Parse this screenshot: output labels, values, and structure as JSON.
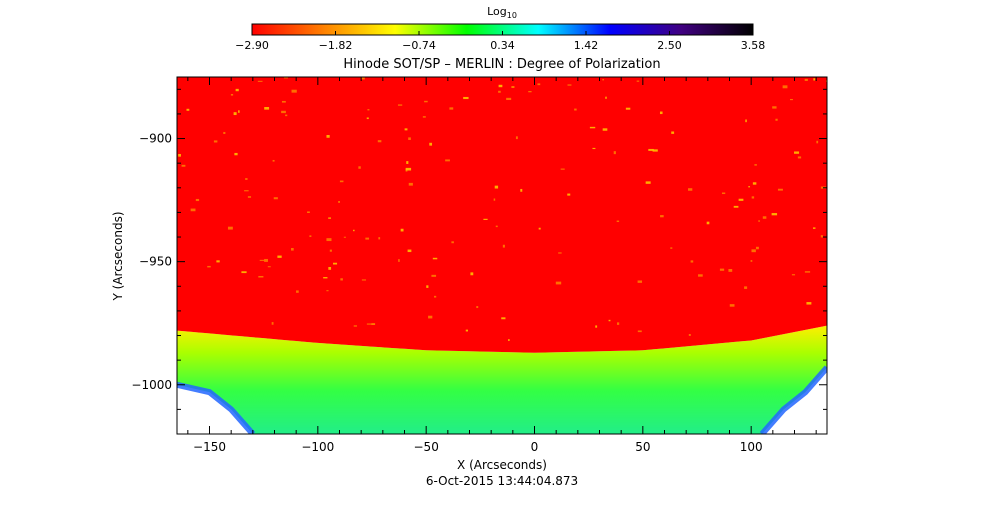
{
  "chart_data": {
    "type": "heatmap",
    "title": "Hinode SOT/SP – MERLIN : Degree of Polarization",
    "xlabel": "X (Arcseconds)",
    "ylabel": "Y (Arcseconds)",
    "timestamp": "6-Oct-2015 13:44:04.873",
    "xlim": [
      -165,
      135
    ],
    "ylim": [
      -1020,
      -875
    ],
    "x_ticks": [
      -150,
      -100,
      -50,
      0,
      50,
      100
    ],
    "y_ticks": [
      -900,
      -950,
      -1000
    ],
    "x_tick_labels": [
      "−150",
      "−100",
      "−50",
      "0",
      "50",
      "100"
    ],
    "y_tick_labels": [
      "−900",
      "−950",
      "−1000"
    ],
    "colorbar": {
      "label_base": "Log",
      "label_sub": "10",
      "min": -2.9,
      "max": 3.58,
      "tick_values": [
        -2.9,
        -1.82,
        -0.74,
        0.34,
        1.42,
        2.5,
        3.58
      ],
      "tick_labels": [
        "−2.90",
        "−1.82",
        "−0.74",
        "0.34",
        "1.42",
        "2.50",
        "3.58"
      ],
      "colormap": [
        "#ff0000",
        "#ff8000",
        "#ffff00",
        "#00ff00",
        "#00ffff",
        "#0000ff",
        "#400080",
        "#000000"
      ]
    },
    "limb": {
      "y_at_x": [
        [
          -165,
          -978
        ],
        [
          -100,
          -983
        ],
        [
          -50,
          -986
        ],
        [
          0,
          -987
        ],
        [
          50,
          -986
        ],
        [
          100,
          -982
        ],
        [
          135,
          -976
        ]
      ],
      "fade_bottom_y": -1020
    },
    "off_disk_color": "#ffffff",
    "disk_value": -2.9,
    "grid": false,
    "legend": "none"
  }
}
